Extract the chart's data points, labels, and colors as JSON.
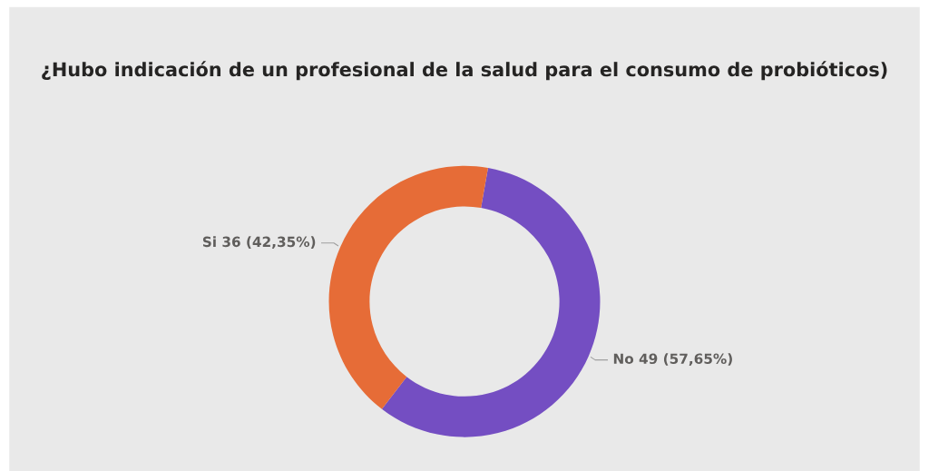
{
  "chart_data": {
    "type": "donut",
    "title": "¿Hubo indicación de un profesional de la salud para el consumo de probióticos)",
    "categories": [
      "No",
      "Si"
    ],
    "values": [
      49,
      36
    ],
    "value_labels": [
      "49 (57,65%)",
      "36 (42,35%)"
    ],
    "colors": [
      "#744ec2",
      "#e66c37"
    ],
    "legend": false
  }
}
